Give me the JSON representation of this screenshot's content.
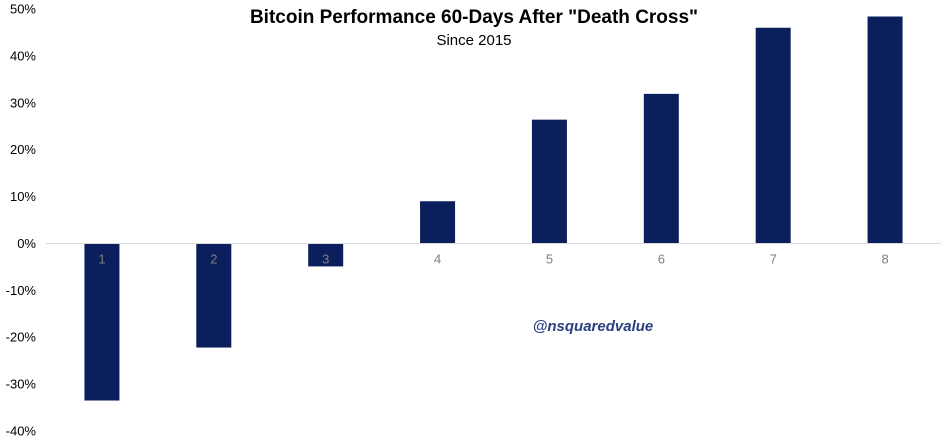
{
  "chart_data": {
    "type": "bar",
    "title": "Bitcoin Performance 60-Days After \"Death Cross\"",
    "subtitle": "Since 2015",
    "xlabel": "",
    "ylabel": "",
    "categories": [
      "1",
      "2",
      "3",
      "4",
      "5",
      "6",
      "7",
      "8"
    ],
    "values": [
      -33.5,
      -22.2,
      -4.9,
      9.0,
      26.4,
      31.9,
      46.0,
      48.4
    ],
    "unit": "%",
    "ylim": [
      -40,
      50
    ],
    "yticks": [
      50,
      40,
      30,
      20,
      10,
      0,
      -10,
      -20,
      -30,
      -40
    ],
    "ytick_labels": [
      "50%",
      "40%",
      "30%",
      "20%",
      "10%",
      "0%",
      "-10%",
      "-20%",
      "-30%",
      "-40%"
    ],
    "grid": false,
    "legend": "none",
    "bar_color": "#0a1f5c",
    "annotation": "@nsquaredvalue",
    "annotation_color": "#2a3f7f"
  }
}
